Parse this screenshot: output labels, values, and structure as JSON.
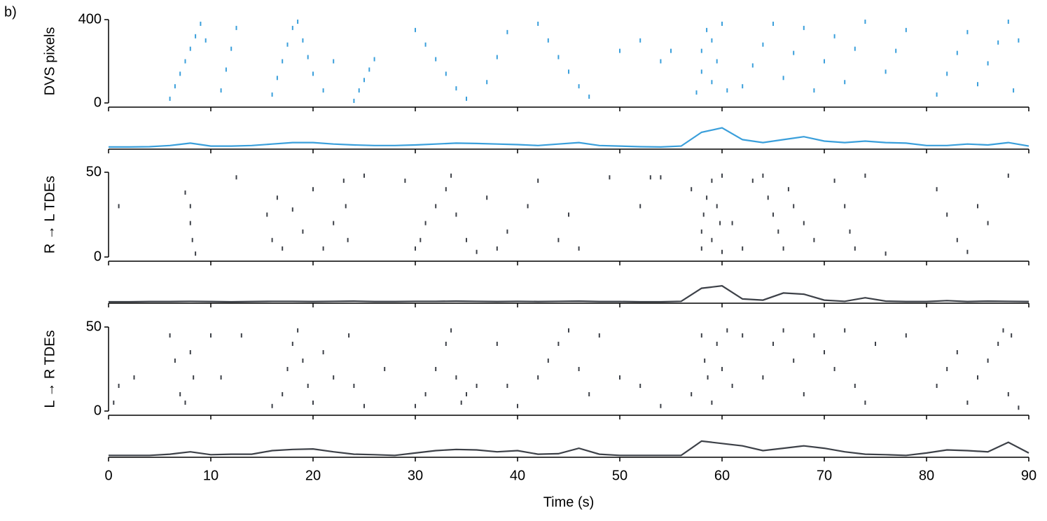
{
  "label": "b)",
  "chart_data": [
    {
      "type": "raster",
      "ylabel": "DVS pixels",
      "color": "#3a9fdb",
      "xlim": [
        0,
        90
      ],
      "ylim": [
        0,
        400
      ],
      "yticks": [
        0,
        400
      ],
      "xticks": [
        0,
        10,
        20,
        30,
        40,
        50,
        60,
        70,
        80,
        90
      ],
      "show_xticklabels": false,
      "x": [
        6,
        6.5,
        7,
        7.5,
        8,
        8.5,
        9,
        9.5,
        11,
        11.5,
        12,
        12.5,
        16,
        16.5,
        17,
        17.5,
        18,
        18.5,
        19,
        19.5,
        20,
        21,
        22,
        24,
        24.5,
        25,
        25.5,
        26,
        30,
        31,
        32,
        33,
        34,
        35,
        37,
        38,
        39,
        42,
        43,
        44,
        45,
        46,
        47,
        50,
        52,
        54,
        55,
        57.5,
        58,
        58,
        58.5,
        59,
        59,
        59.5,
        60,
        60.5,
        62,
        63,
        64,
        65,
        66,
        67,
        68,
        69,
        70,
        71,
        72,
        73,
        74,
        76,
        77,
        78,
        81,
        82,
        83,
        84,
        85,
        86,
        87,
        88,
        88.5,
        89
      ],
      "values": [
        20,
        80,
        140,
        200,
        260,
        320,
        380,
        300,
        60,
        160,
        260,
        360,
        40,
        120,
        200,
        280,
        360,
        390,
        300,
        220,
        140,
        60,
        200,
        10,
        60,
        110,
        160,
        210,
        350,
        280,
        210,
        140,
        70,
        20,
        100,
        220,
        340,
        380,
        300,
        220,
        150,
        80,
        30,
        250,
        300,
        200,
        250,
        50,
        150,
        250,
        350,
        100,
        300,
        200,
        380,
        60,
        80,
        180,
        280,
        380,
        120,
        240,
        360,
        60,
        200,
        320,
        100,
        260,
        390,
        150,
        250,
        350,
        40,
        140,
        240,
        340,
        90,
        190,
        290,
        390,
        60,
        300
      ]
    },
    {
      "type": "line",
      "color": "#3a9fdb",
      "xlim": [
        0,
        90
      ],
      "ylim": [
        0,
        1
      ],
      "xticks": [
        0,
        10,
        20,
        30,
        40,
        50,
        60,
        70,
        80,
        90
      ],
      "show_xticklabels": false,
      "x": [
        0,
        2,
        4,
        6,
        8,
        10,
        12,
        14,
        16,
        18,
        20,
        22,
        24,
        26,
        28,
        30,
        32,
        34,
        36,
        38,
        40,
        42,
        44,
        46,
        48,
        50,
        52,
        54,
        56,
        58,
        60,
        62,
        64,
        66,
        68,
        70,
        72,
        74,
        76,
        78,
        80,
        82,
        84,
        86,
        88,
        90
      ],
      "values": [
        0.05,
        0.05,
        0.06,
        0.1,
        0.18,
        0.08,
        0.08,
        0.1,
        0.15,
        0.2,
        0.2,
        0.15,
        0.12,
        0.1,
        0.1,
        0.12,
        0.15,
        0.18,
        0.17,
        0.15,
        0.13,
        0.1,
        0.15,
        0.2,
        0.1,
        0.08,
        0.06,
        0.05,
        0.08,
        0.55,
        0.7,
        0.3,
        0.2,
        0.3,
        0.4,
        0.25,
        0.2,
        0.25,
        0.2,
        0.18,
        0.1,
        0.1,
        0.15,
        0.12,
        0.2,
        0.08
      ]
    },
    {
      "type": "raster",
      "ylabel": "R → L TDEs",
      "color": "#3d4148",
      "xlim": [
        0,
        90
      ],
      "ylim": [
        0,
        50
      ],
      "yticks": [
        0,
        50
      ],
      "xticks": [
        0,
        10,
        20,
        30,
        40,
        50,
        60,
        70,
        80,
        90
      ],
      "show_xticklabels": false,
      "x": [
        1,
        7.5,
        8,
        8,
        8.2,
        8.5,
        12.5,
        15.5,
        16,
        16.5,
        17,
        18,
        19,
        20,
        21,
        22,
        23,
        23.2,
        23.4,
        25,
        29,
        30,
        30.5,
        31,
        32,
        33,
        33.5,
        34,
        35,
        36,
        37,
        38,
        39,
        41,
        42,
        44,
        45,
        46,
        49,
        52,
        53,
        54,
        57,
        58,
        58,
        58.2,
        58.5,
        59,
        59,
        59.5,
        59.8,
        60,
        60,
        61,
        62,
        63,
        64,
        64.5,
        65,
        65.5,
        66,
        66.5,
        67,
        68,
        69,
        71,
        72,
        72.5,
        73,
        74,
        76,
        81,
        82,
        83,
        84,
        85,
        86,
        88
      ],
      "values": [
        30,
        38,
        30,
        20,
        10,
        2,
        47,
        25,
        10,
        35,
        5,
        28,
        15,
        40,
        5,
        20,
        45,
        30,
        10,
        48,
        45,
        5,
        10,
        20,
        30,
        40,
        48,
        25,
        10,
        3,
        35,
        5,
        15,
        30,
        45,
        10,
        25,
        5,
        47,
        30,
        47,
        47,
        40,
        5,
        15,
        25,
        35,
        45,
        10,
        30,
        20,
        48,
        3,
        20,
        5,
        45,
        48,
        35,
        25,
        15,
        5,
        40,
        30,
        20,
        10,
        45,
        30,
        15,
        5,
        48,
        2,
        40,
        25,
        10,
        3,
        30,
        20,
        48
      ]
    },
    {
      "type": "line",
      "color": "#3d4148",
      "xlim": [
        0,
        90
      ],
      "ylim": [
        0,
        1
      ],
      "xticks": [
        0,
        10,
        20,
        30,
        40,
        50,
        60,
        70,
        80,
        90
      ],
      "show_xticklabels": false,
      "x": [
        0,
        2,
        4,
        6,
        8,
        10,
        12,
        14,
        16,
        18,
        20,
        22,
        24,
        26,
        28,
        30,
        32,
        34,
        36,
        38,
        40,
        42,
        44,
        46,
        48,
        50,
        52,
        54,
        56,
        58,
        60,
        62,
        64,
        66,
        68,
        70,
        72,
        74,
        76,
        78,
        80,
        82,
        84,
        86,
        88,
        90
      ],
      "values": [
        0.03,
        0.03,
        0.04,
        0.04,
        0.05,
        0.04,
        0.03,
        0.04,
        0.05,
        0.05,
        0.04,
        0.05,
        0.06,
        0.04,
        0.04,
        0.05,
        0.05,
        0.06,
        0.05,
        0.04,
        0.05,
        0.04,
        0.05,
        0.06,
        0.04,
        0.04,
        0.03,
        0.03,
        0.05,
        0.6,
        0.7,
        0.15,
        0.1,
        0.4,
        0.35,
        0.1,
        0.05,
        0.2,
        0.06,
        0.04,
        0.04,
        0.08,
        0.04,
        0.06,
        0.05,
        0.04
      ]
    },
    {
      "type": "raster",
      "ylabel": "L → R TDEs",
      "color": "#3d4148",
      "xlim": [
        0,
        90
      ],
      "ylim": [
        0,
        50
      ],
      "yticks": [
        0,
        50
      ],
      "xticks": [
        0,
        10,
        20,
        30,
        40,
        50,
        60,
        70,
        80,
        90
      ],
      "show_xticklabels": false,
      "x": [
        0.5,
        1,
        2.5,
        6,
        6.5,
        7,
        7.5,
        8,
        8.3,
        10,
        11,
        13,
        16,
        17,
        17.5,
        18,
        18.5,
        19,
        19.5,
        20,
        21,
        22,
        23.5,
        24,
        25,
        27,
        30,
        31,
        32,
        33,
        33.5,
        34,
        34.5,
        35,
        36,
        38,
        39,
        40,
        42,
        43,
        44,
        45,
        46,
        47,
        48,
        50,
        52,
        54,
        57,
        58,
        58.3,
        58.6,
        59,
        59.5,
        60,
        60.5,
        61,
        62,
        64,
        65,
        66,
        67,
        68,
        69,
        70,
        71,
        72,
        73,
        74,
        75,
        78,
        81,
        82,
        83,
        84,
        85,
        86,
        87,
        87.5,
        88,
        88.3,
        89
      ],
      "values": [
        5,
        15,
        20,
        45,
        30,
        10,
        5,
        35,
        20,
        45,
        20,
        45,
        3,
        10,
        25,
        40,
        48,
        30,
        15,
        5,
        35,
        20,
        45,
        15,
        3,
        25,
        3,
        10,
        25,
        40,
        48,
        20,
        5,
        10,
        15,
        40,
        15,
        3,
        20,
        30,
        40,
        48,
        25,
        10,
        45,
        20,
        15,
        3,
        10,
        45,
        30,
        20,
        5,
        40,
        25,
        48,
        15,
        45,
        20,
        40,
        48,
        30,
        10,
        45,
        35,
        25,
        48,
        15,
        5,
        40,
        45,
        15,
        25,
        35,
        5,
        20,
        30,
        40,
        48,
        10,
        45,
        2
      ]
    },
    {
      "type": "line",
      "color": "#3d4148",
      "xlim": [
        0,
        90
      ],
      "ylim": [
        0,
        1
      ],
      "xticks": [
        0,
        10,
        20,
        30,
        40,
        50,
        60,
        70,
        80,
        90
      ],
      "show_xticklabels": true,
      "xlabel": "Time (s)",
      "x": [
        0,
        2,
        4,
        6,
        8,
        10,
        12,
        14,
        16,
        18,
        20,
        22,
        24,
        26,
        28,
        30,
        32,
        34,
        36,
        38,
        40,
        42,
        44,
        46,
        48,
        50,
        52,
        54,
        56,
        58,
        60,
        62,
        64,
        66,
        68,
        70,
        72,
        74,
        76,
        78,
        80,
        82,
        84,
        86,
        88,
        90
      ],
      "values": [
        0.05,
        0.05,
        0.05,
        0.1,
        0.2,
        0.08,
        0.1,
        0.1,
        0.25,
        0.3,
        0.32,
        0.2,
        0.1,
        0.08,
        0.05,
        0.15,
        0.25,
        0.3,
        0.28,
        0.2,
        0.25,
        0.1,
        0.12,
        0.35,
        0.1,
        0.05,
        0.05,
        0.05,
        0.05,
        0.65,
        0.55,
        0.45,
        0.25,
        0.35,
        0.45,
        0.35,
        0.2,
        0.1,
        0.08,
        0.05,
        0.15,
        0.28,
        0.25,
        0.2,
        0.6,
        0.15
      ]
    }
  ]
}
